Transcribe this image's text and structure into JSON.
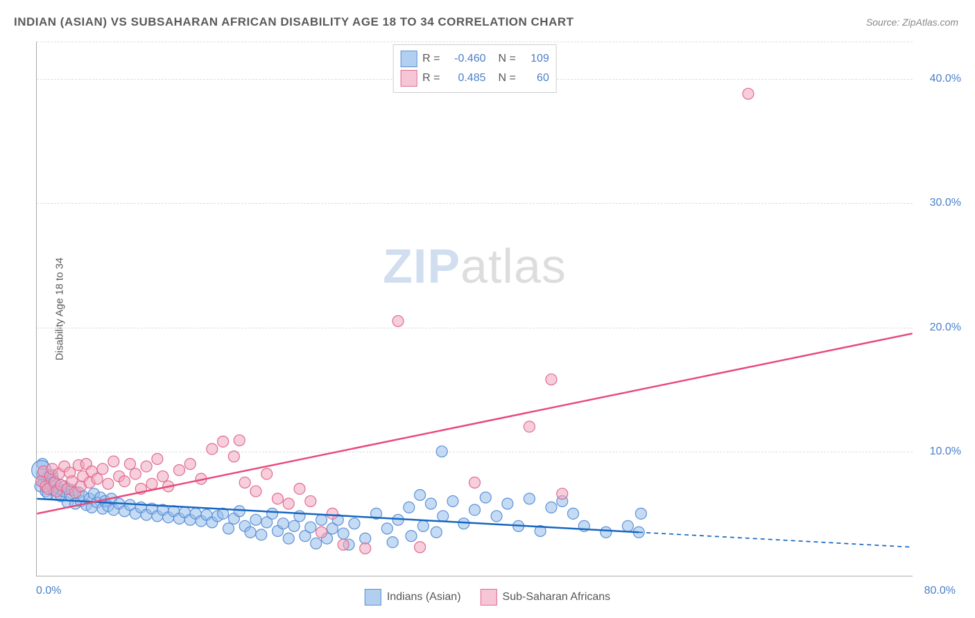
{
  "title": "INDIAN (ASIAN) VS SUBSAHARAN AFRICAN DISABILITY AGE 18 TO 34 CORRELATION CHART",
  "source": "Source: ZipAtlas.com",
  "y_axis_label": "Disability Age 18 to 34",
  "watermark": {
    "zip": "ZIP",
    "atlas": "atlas"
  },
  "chart": {
    "type": "scatter",
    "background_color": "#ffffff",
    "grid_color": "#dddddd",
    "axis_color": "#aaaaaa",
    "tick_color": "#4a7fc9",
    "xlim": [
      0,
      80
    ],
    "ylim": [
      0,
      43
    ],
    "y_gridlines": [
      10,
      20,
      30,
      40,
      43
    ],
    "y_tick_labels": [
      {
        "value": 10,
        "label": "10.0%"
      },
      {
        "value": 20,
        "label": "20.0%"
      },
      {
        "value": 30,
        "label": "30.0%"
      },
      {
        "value": 40,
        "label": "40.0%"
      }
    ],
    "x_tick_labels": [
      {
        "value": 0,
        "label": "0.0%"
      },
      {
        "value": 80,
        "label": "80.0%"
      }
    ],
    "stats_box": {
      "rows": [
        {
          "swatch_fill": "#b3cff0",
          "swatch_stroke": "#5a8fd6",
          "r_label": "R =",
          "r_value": "-0.460",
          "n_label": "N =",
          "n_value": "109"
        },
        {
          "swatch_fill": "#f6c6d6",
          "swatch_stroke": "#e06a8f",
          "r_label": "R =",
          "r_value": "0.485",
          "n_label": "N =",
          "n_value": "60"
        }
      ]
    },
    "bottom_legend": [
      {
        "swatch_fill": "#b3cff0",
        "swatch_stroke": "#5a8fd6",
        "label": "Indians (Asian)"
      },
      {
        "swatch_fill": "#f6c6d6",
        "swatch_stroke": "#e06a8f",
        "label": "Sub-Saharan Africans"
      }
    ],
    "series": [
      {
        "name": "Indians (Asian)",
        "marker_fill": "rgba(150,190,235,0.55)",
        "marker_stroke": "#5a8fd6",
        "marker_radius": 8,
        "trend": {
          "color": "#1565c0",
          "width": 2.5,
          "x1": 0,
          "y1": 6.2,
          "x2": 55,
          "y2": 3.5,
          "dash_x2": 80,
          "dash_y2": 2.3
        },
        "points": [
          [
            0.3,
            7.2
          ],
          [
            0.5,
            8.2
          ],
          [
            0.5,
            9.0
          ],
          [
            0.6,
            7.5
          ],
          [
            0.8,
            6.8
          ],
          [
            1.0,
            8.0
          ],
          [
            1.0,
            6.6
          ],
          [
            1.2,
            7.4
          ],
          [
            1.4,
            8.1
          ],
          [
            1.5,
            6.9
          ],
          [
            1.6,
            7.6
          ],
          [
            1.8,
            6.5
          ],
          [
            2.0,
            7.0
          ],
          [
            2.2,
            6.4
          ],
          [
            2.4,
            6.8
          ],
          [
            2.5,
            7.2
          ],
          [
            2.8,
            5.9
          ],
          [
            3.0,
            6.5
          ],
          [
            3.2,
            6.9
          ],
          [
            3.5,
            5.8
          ],
          [
            3.8,
            6.7
          ],
          [
            4.0,
            6.0
          ],
          [
            4.2,
            6.4
          ],
          [
            4.5,
            5.7
          ],
          [
            4.8,
            6.2
          ],
          [
            5.0,
            5.5
          ],
          [
            5.2,
            6.6
          ],
          [
            5.5,
            5.9
          ],
          [
            5.8,
            6.3
          ],
          [
            6.0,
            5.4
          ],
          [
            6.2,
            6.0
          ],
          [
            6.5,
            5.6
          ],
          [
            6.8,
            6.2
          ],
          [
            7.0,
            5.3
          ],
          [
            7.5,
            5.8
          ],
          [
            8.0,
            5.2
          ],
          [
            8.5,
            5.7
          ],
          [
            9.0,
            5.0
          ],
          [
            9.5,
            5.5
          ],
          [
            10.0,
            4.9
          ],
          [
            10.5,
            5.4
          ],
          [
            11.0,
            4.8
          ],
          [
            11.5,
            5.3
          ],
          [
            12.0,
            4.7
          ],
          [
            12.5,
            5.2
          ],
          [
            13.0,
            4.6
          ],
          [
            13.5,
            5.1
          ],
          [
            14.0,
            4.5
          ],
          [
            14.5,
            5.0
          ],
          [
            15.0,
            4.4
          ],
          [
            15.5,
            4.9
          ],
          [
            16.0,
            4.3
          ],
          [
            16.5,
            4.8
          ],
          [
            17.0,
            5.0
          ],
          [
            17.5,
            3.8
          ],
          [
            18.0,
            4.6
          ],
          [
            18.5,
            5.2
          ],
          [
            19.0,
            4.0
          ],
          [
            19.5,
            3.5
          ],
          [
            20.0,
            4.5
          ],
          [
            20.5,
            3.3
          ],
          [
            21.0,
            4.3
          ],
          [
            21.5,
            5.0
          ],
          [
            22.0,
            3.6
          ],
          [
            22.5,
            4.2
          ],
          [
            23.0,
            3.0
          ],
          [
            23.5,
            4.0
          ],
          [
            24.0,
            4.8
          ],
          [
            24.5,
            3.2
          ],
          [
            25.0,
            3.9
          ],
          [
            25.5,
            2.6
          ],
          [
            26.0,
            4.5
          ],
          [
            26.5,
            3.0
          ],
          [
            27.0,
            3.8
          ],
          [
            27.5,
            4.5
          ],
          [
            28.0,
            3.4
          ],
          [
            28.5,
            2.5
          ],
          [
            29.0,
            4.2
          ],
          [
            30.0,
            3.0
          ],
          [
            31.0,
            5.0
          ],
          [
            32.0,
            3.8
          ],
          [
            32.5,
            2.7
          ],
          [
            33.0,
            4.5
          ],
          [
            34.0,
            5.5
          ],
          [
            34.2,
            3.2
          ],
          [
            35.0,
            6.5
          ],
          [
            35.3,
            4.0
          ],
          [
            36.0,
            5.8
          ],
          [
            36.5,
            3.5
          ],
          [
            37.0,
            10.0
          ],
          [
            37.1,
            4.8
          ],
          [
            38.0,
            6.0
          ],
          [
            39.0,
            4.2
          ],
          [
            40.0,
            5.3
          ],
          [
            41.0,
            6.3
          ],
          [
            42.0,
            4.8
          ],
          [
            43.0,
            5.8
          ],
          [
            44.0,
            4.0
          ],
          [
            45.0,
            6.2
          ],
          [
            46.0,
            3.6
          ],
          [
            47.0,
            5.5
          ],
          [
            48.0,
            6.0
          ],
          [
            49.0,
            5.0
          ],
          [
            50.0,
            4.0
          ],
          [
            52.0,
            3.5
          ],
          [
            54.0,
            4.0
          ],
          [
            55.0,
            3.5
          ],
          [
            55.2,
            5.0
          ]
        ],
        "large_points": [
          {
            "x": 0.4,
            "y": 8.5,
            "r": 14
          }
        ]
      },
      {
        "name": "Sub-Saharan Africans",
        "marker_fill": "rgba(240,165,190,0.55)",
        "marker_stroke": "#e06a8f",
        "marker_radius": 8,
        "trend": {
          "color": "#e84a7a",
          "width": 2.5,
          "x1": 0,
          "y1": 5.0,
          "x2": 80,
          "y2": 19.5,
          "dash_x2": null,
          "dash_y2": null
        },
        "points": [
          [
            0.4,
            7.6
          ],
          [
            0.6,
            8.4
          ],
          [
            0.8,
            7.2
          ],
          [
            1.0,
            7.0
          ],
          [
            1.2,
            8.0
          ],
          [
            1.4,
            8.6
          ],
          [
            1.6,
            7.5
          ],
          [
            1.8,
            6.8
          ],
          [
            2.0,
            8.2
          ],
          [
            2.2,
            7.3
          ],
          [
            2.5,
            8.8
          ],
          [
            2.8,
            7.0
          ],
          [
            3.0,
            8.3
          ],
          [
            3.2,
            7.6
          ],
          [
            3.5,
            6.7
          ],
          [
            3.8,
            8.9
          ],
          [
            4.0,
            7.2
          ],
          [
            4.2,
            8.0
          ],
          [
            4.5,
            9.0
          ],
          [
            4.8,
            7.5
          ],
          [
            5.0,
            8.4
          ],
          [
            5.5,
            7.8
          ],
          [
            6.0,
            8.6
          ],
          [
            6.5,
            7.4
          ],
          [
            7.0,
            9.2
          ],
          [
            7.5,
            8.0
          ],
          [
            8.0,
            7.6
          ],
          [
            8.5,
            9.0
          ],
          [
            9.0,
            8.2
          ],
          [
            9.5,
            7.0
          ],
          [
            10.0,
            8.8
          ],
          [
            10.5,
            7.4
          ],
          [
            11.0,
            9.4
          ],
          [
            11.5,
            8.0
          ],
          [
            12.0,
            7.2
          ],
          [
            13.0,
            8.5
          ],
          [
            14.0,
            9.0
          ],
          [
            15.0,
            7.8
          ],
          [
            16.0,
            10.2
          ],
          [
            17.0,
            10.8
          ],
          [
            18.0,
            9.6
          ],
          [
            18.5,
            10.9
          ],
          [
            19.0,
            7.5
          ],
          [
            20.0,
            6.8
          ],
          [
            21.0,
            8.2
          ],
          [
            22.0,
            6.2
          ],
          [
            23.0,
            5.8
          ],
          [
            24.0,
            7.0
          ],
          [
            25.0,
            6.0
          ],
          [
            26.0,
            3.5
          ],
          [
            27.0,
            5.0
          ],
          [
            28.0,
            2.5
          ],
          [
            30.0,
            2.2
          ],
          [
            33.0,
            20.5
          ],
          [
            35.0,
            2.3
          ],
          [
            40.0,
            7.5
          ],
          [
            45.0,
            12.0
          ],
          [
            47.0,
            15.8
          ],
          [
            48.0,
            6.6
          ],
          [
            65.0,
            38.8
          ]
        ],
        "large_points": []
      }
    ]
  }
}
